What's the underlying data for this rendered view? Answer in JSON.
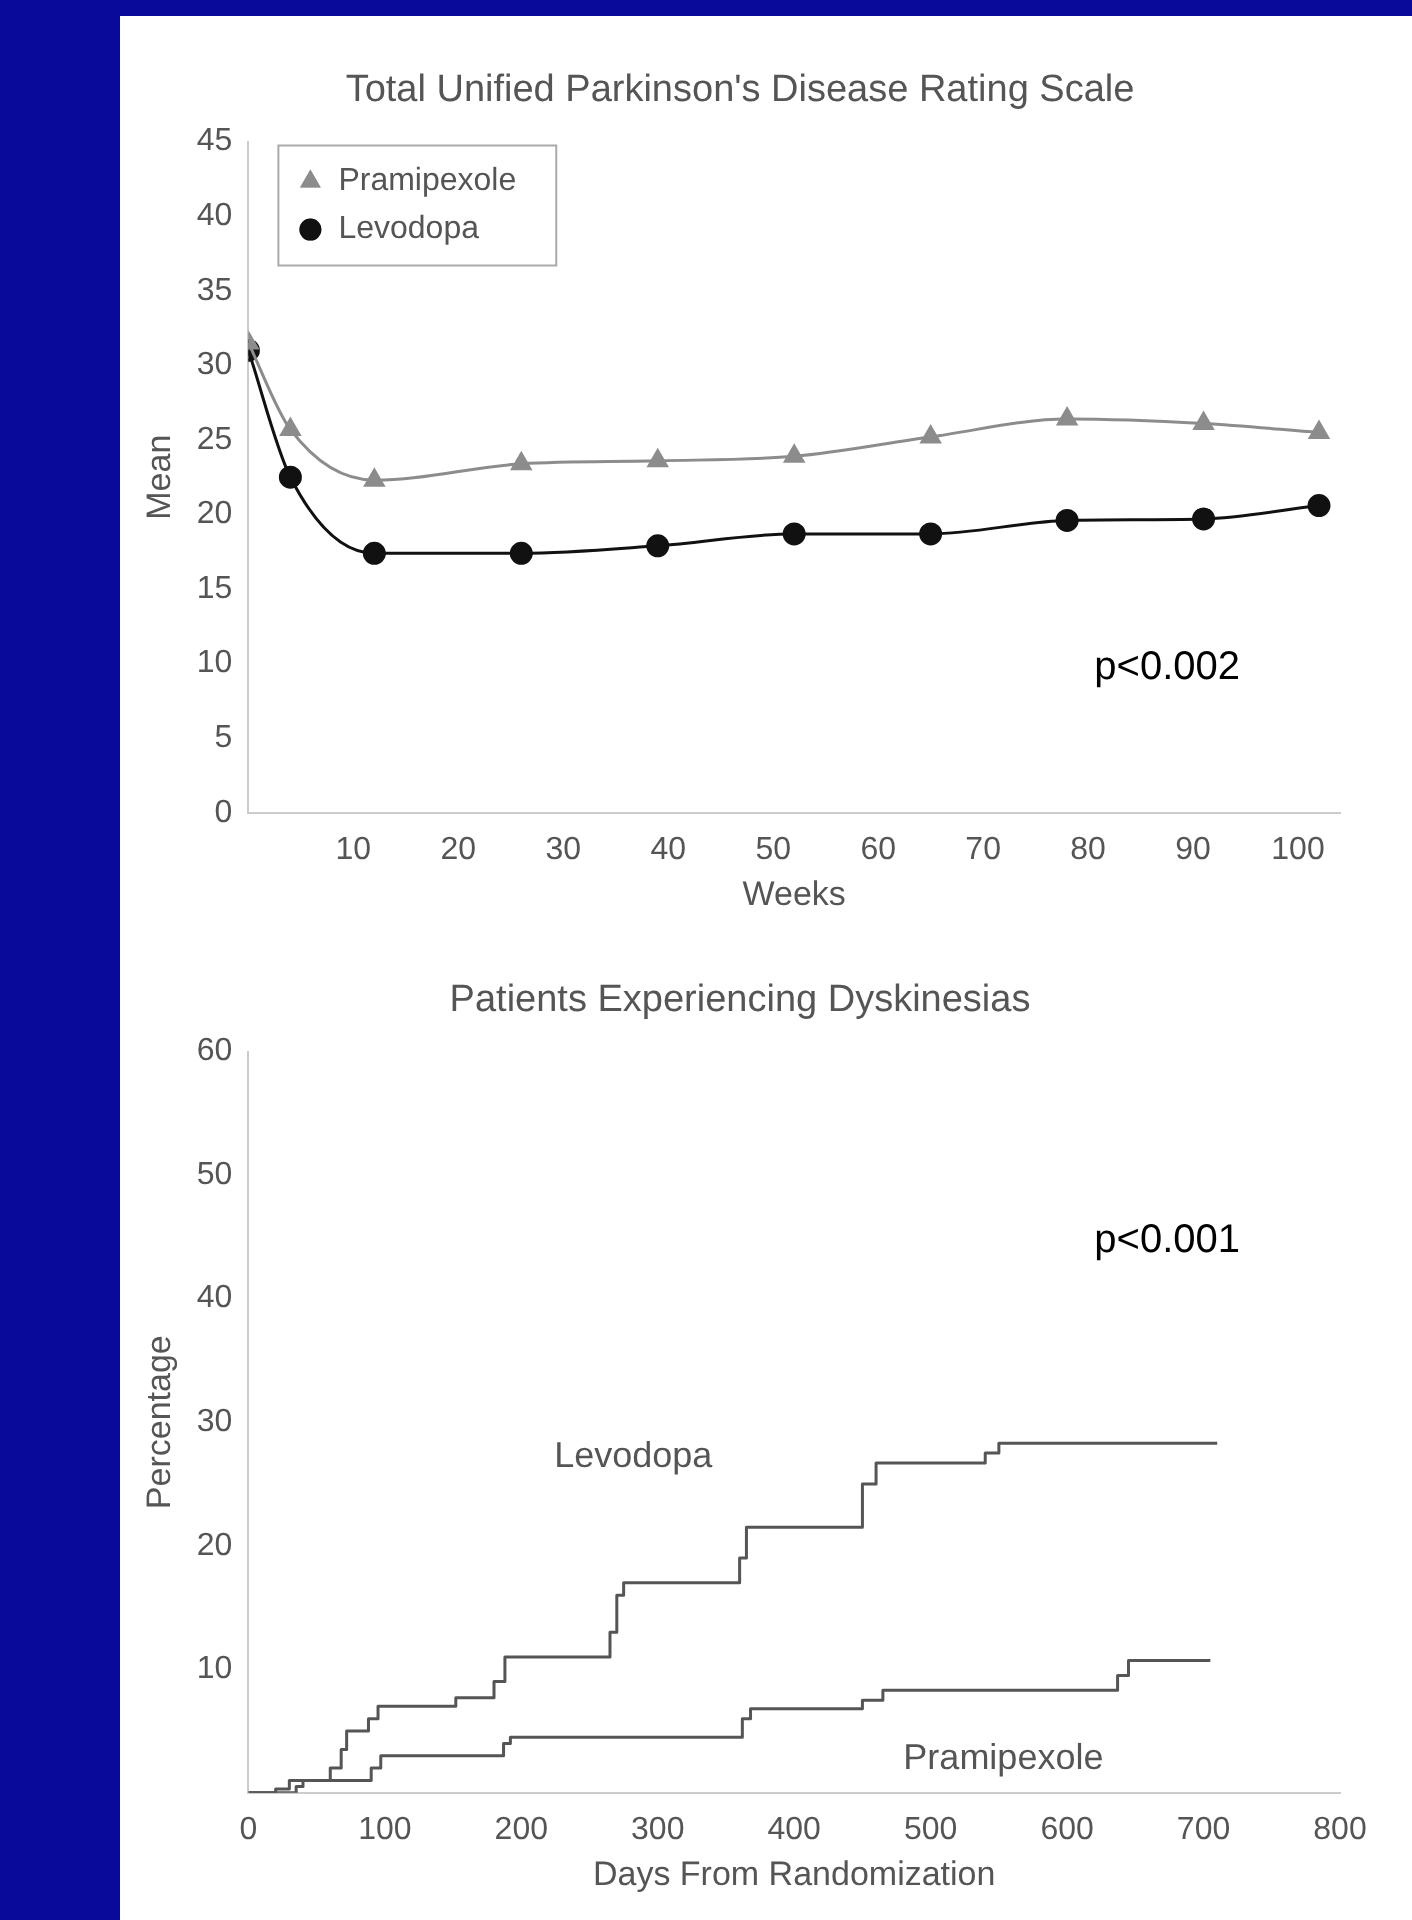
{
  "chart_data": [
    {
      "type": "line",
      "title": "Total Unified Parkinson's Disease Rating Scale",
      "xlabel": "Weeks",
      "ylabel": "Mean",
      "x": [
        0,
        4,
        12,
        26,
        39,
        52,
        65,
        78,
        91,
        102
      ],
      "series": [
        {
          "name": "Pramipexole",
          "color": "#8c8c8c",
          "marker": "triangle",
          "values": [
            31.5,
            25.7,
            22.3,
            23.4,
            23.6,
            23.9,
            25.2,
            26.4,
            26.1,
            25.5
          ]
        },
        {
          "name": "Levodopa",
          "color": "#111111",
          "marker": "circle",
          "values": [
            31,
            22.5,
            17.4,
            17.4,
            17.9,
            18.7,
            18.7,
            19.6,
            19.7,
            20.6
          ]
        }
      ],
      "xlim": [
        0,
        104
      ],
      "xticks": [
        10,
        20,
        30,
        40,
        50,
        60,
        70,
        80,
        90,
        100
      ],
      "ylim": [
        0,
        45
      ],
      "yticks": [
        0,
        5,
        10,
        15,
        20,
        25,
        30,
        35,
        40,
        45
      ],
      "legend": "top left",
      "grid": false,
      "annotations": [
        "p<0.002"
      ]
    },
    {
      "type": "step",
      "title": "Patients Experiencing Dyskinesias",
      "xlabel": "Days From Randomization",
      "ylabel": "Percentage",
      "series": [
        {
          "name": "Levodopa",
          "color": "#555555",
          "x": [
            0,
            20,
            30,
            55,
            60,
            68,
            72,
            85,
            88,
            95,
            150,
            152,
            175,
            180,
            188,
            260,
            265,
            270,
            275,
            355,
            360,
            365,
            445,
            450,
            460,
            535,
            540,
            550,
            710
          ],
          "values": [
            0,
            0.3,
            1,
            1,
            2,
            3.5,
            5,
            5,
            6,
            7,
            7,
            7.7,
            7.7,
            9,
            11,
            11,
            13,
            16,
            17,
            17,
            19,
            21.5,
            21.5,
            25,
            26.7,
            26.7,
            27.5,
            28.3,
            28.3
          ]
        },
        {
          "name": "Pramipexole",
          "color": "#555555",
          "x": [
            0,
            35,
            40,
            85,
            90,
            97,
            180,
            187,
            192,
            355,
            362,
            368,
            445,
            450,
            465,
            630,
            637,
            645,
            705
          ],
          "values": [
            0,
            0.5,
            1,
            1,
            2,
            3,
            3,
            4,
            4.5,
            4.5,
            6,
            6.8,
            6.8,
            7.5,
            8.3,
            8.3,
            9.5,
            10.7,
            10.7
          ]
        }
      ],
      "xlim": [
        0,
        800
      ],
      "xticks": [
        0,
        100,
        200,
        300,
        400,
        500,
        600,
        700,
        800
      ],
      "ylim": [
        0,
        60
      ],
      "yticks": [
        10,
        20,
        30,
        40,
        50,
        60
      ],
      "legend": false,
      "grid": false,
      "marker": "none",
      "annotations": [
        "p<0.001"
      ]
    }
  ]
}
